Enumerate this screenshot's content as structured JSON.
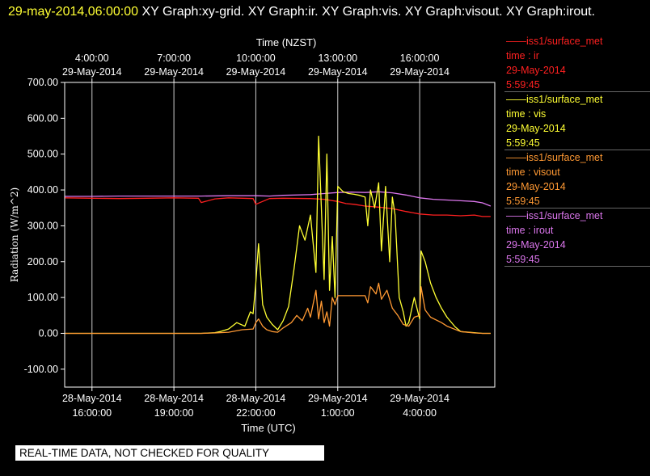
{
  "header": {
    "timestamp": "29-may-2014,06:00:00",
    "graphs": " XY Graph:xy-grid.  XY Graph:ir.  XY Graph:vis.  XY Graph:visout.  XY Graph:irout."
  },
  "legend": [
    {
      "title": "——iss1/surface_met",
      "field": "time : ir",
      "date": "29-May-2014",
      "time": "5:59:45",
      "color": "#ff2020"
    },
    {
      "title": "——iss1/surface_met",
      "field": "time : vis",
      "date": "29-May-2014",
      "time": "5:59:45",
      "color": "#ffff33"
    },
    {
      "title": "——iss1/surface_met",
      "field": "time : visout",
      "date": "29-May-2014",
      "time": "5:59:45",
      "color": "#ff9933"
    },
    {
      "title": "——iss1/surface_met",
      "field": "time : irout",
      "date": "29-May-2014",
      "time": "5:59:45",
      "color": "#dd77ee"
    }
  ],
  "disclaimer": "REAL-TIME DATA, NOT CHECKED FOR QUALITY",
  "chart_data": {
    "type": "line",
    "ylabel": "Radiation  (W/m^2)",
    "xlabel_bottom": "Time (UTC)",
    "xlabel_top": "Time (NZST)",
    "ylim": [
      -150,
      700
    ],
    "yticks": [
      "-100.00",
      "0.00",
      "100.00",
      "200.00",
      "300.00",
      "400.00",
      "500.00",
      "600.00",
      "700.00"
    ],
    "ytick_values": [
      -100,
      0,
      100,
      200,
      300,
      400,
      500,
      600,
      700
    ],
    "xlim_hours_utc": [
      15.0,
      30.75
    ],
    "bottom_ticks": [
      {
        "hour": 16,
        "date": "28-May-2014",
        "time": "16:00:00"
      },
      {
        "hour": 19,
        "date": "28-May-2014",
        "time": "19:00:00"
      },
      {
        "hour": 22,
        "date": "28-May-2014",
        "time": "22:00:00"
      },
      {
        "hour": 25,
        "date": "29-May-2014",
        "time": "1:00:00"
      },
      {
        "hour": 28,
        "date": "29-May-2014",
        "time": "4:00:00"
      }
    ],
    "top_ticks": [
      {
        "hour": 16,
        "date": "29-May-2014",
        "time": "4:00:00"
      },
      {
        "hour": 19,
        "date": "29-May-2014",
        "time": "7:00:00"
      },
      {
        "hour": 22,
        "date": "29-May-2014",
        "time": "10:00:00"
      },
      {
        "hour": 25,
        "date": "29-May-2014",
        "time": "13:00:00"
      },
      {
        "hour": 28,
        "date": "29-May-2014",
        "time": "16:00:00"
      }
    ],
    "grid": true,
    "series": [
      {
        "name": "ir",
        "color": "#ff2020",
        "x": [
          15.0,
          16.0,
          17.0,
          18.0,
          19.0,
          19.9,
          20.0,
          20.5,
          21.0,
          21.9,
          22.0,
          22.5,
          23.0,
          24.0,
          24.5,
          25.0,
          25.3,
          25.6,
          26.0,
          26.5,
          27.0,
          27.5,
          28.0,
          28.5,
          29.0,
          29.5,
          30.0,
          30.3,
          30.6
        ],
        "y": [
          378,
          377,
          376,
          377,
          378,
          377,
          365,
          375,
          378,
          376,
          360,
          376,
          377,
          376,
          374,
          368,
          362,
          360,
          355,
          352,
          348,
          340,
          333,
          330,
          330,
          328,
          330,
          326,
          326
        ]
      },
      {
        "name": "irout",
        "color": "#dd77ee",
        "x": [
          15.0,
          16.0,
          17.0,
          18.0,
          19.0,
          20.0,
          21.0,
          22.0,
          22.5,
          23.0,
          24.0,
          24.5,
          25.0,
          25.5,
          26.0,
          26.5,
          27.0,
          27.5,
          28.0,
          28.5,
          29.0,
          29.5,
          30.0,
          30.3,
          30.6
        ],
        "y": [
          382,
          382,
          383,
          383,
          383,
          383,
          384,
          384,
          383,
          385,
          387,
          390,
          393,
          394,
          393,
          395,
          392,
          386,
          378,
          374,
          372,
          370,
          368,
          364,
          355
        ]
      },
      {
        "name": "vis",
        "color": "#ffff33",
        "x": [
          15.0,
          16.0,
          17.0,
          18.0,
          19.0,
          20.0,
          20.5,
          20.7,
          21.0,
          21.3,
          21.6,
          21.8,
          21.9,
          22.0,
          22.1,
          22.25,
          22.4,
          22.6,
          22.8,
          23.0,
          23.2,
          23.4,
          23.6,
          23.8,
          24.0,
          24.2,
          24.3,
          24.5,
          24.6,
          24.7,
          24.8,
          24.9,
          25.0,
          25.2,
          25.4,
          25.6,
          25.8,
          26.0,
          26.1,
          26.2,
          26.35,
          26.5,
          26.6,
          26.75,
          26.9,
          27.0,
          27.1,
          27.25,
          27.4,
          27.5,
          27.6,
          27.8,
          28.0,
          28.05,
          28.2,
          28.4,
          28.6,
          28.8,
          29.0,
          29.3,
          29.5,
          30.0,
          30.3,
          30.6
        ],
        "y": [
          0,
          0,
          0,
          0,
          0,
          0,
          2,
          5,
          12,
          30,
          20,
          60,
          55,
          140,
          250,
          80,
          45,
          25,
          10,
          35,
          75,
          180,
          300,
          260,
          330,
          170,
          550,
          150,
          500,
          120,
          270,
          100,
          410,
          395,
          390,
          388,
          385,
          380,
          300,
          400,
          350,
          420,
          230,
          410,
          200,
          380,
          330,
          100,
          60,
          20,
          30,
          100,
          40,
          230,
          200,
          140,
          100,
          70,
          45,
          18,
          5,
          2,
          0,
          0
        ]
      },
      {
        "name": "visout",
        "color": "#ff9933",
        "x": [
          15.0,
          16.0,
          17.0,
          18.0,
          19.0,
          20.0,
          20.5,
          21.0,
          21.5,
          21.9,
          22.0,
          22.1,
          22.25,
          22.4,
          22.6,
          22.8,
          23.0,
          23.3,
          23.5,
          23.7,
          23.9,
          24.0,
          24.2,
          24.3,
          24.4,
          24.5,
          24.6,
          24.7,
          24.8,
          24.9,
          25.0,
          25.5,
          26.0,
          26.1,
          26.2,
          26.4,
          26.5,
          26.6,
          26.8,
          27.0,
          27.2,
          27.4,
          27.6,
          27.8,
          28.0,
          28.05,
          28.2,
          28.4,
          28.8,
          29.0,
          29.5,
          30.0,
          30.3,
          30.6
        ],
        "y": [
          0,
          0,
          0,
          0,
          0,
          0,
          1,
          3,
          10,
          12,
          30,
          40,
          20,
          10,
          5,
          3,
          15,
          30,
          50,
          35,
          70,
          45,
          120,
          40,
          90,
          30,
          60,
          20,
          100,
          80,
          105,
          105,
          105,
          85,
          130,
          110,
          140,
          95,
          120,
          70,
          50,
          25,
          20,
          45,
          50,
          130,
          65,
          45,
          30,
          20,
          5,
          1,
          0,
          0
        ]
      }
    ]
  }
}
